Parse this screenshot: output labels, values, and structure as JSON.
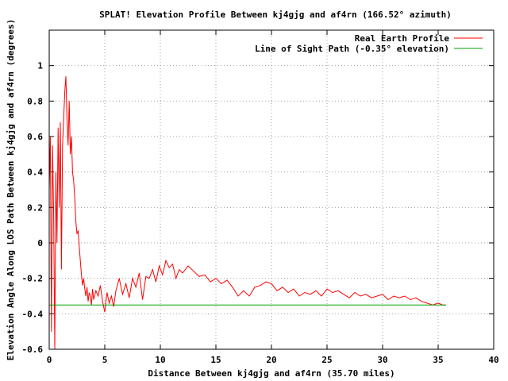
{
  "chart_data": {
    "type": "line",
    "title": "SPLAT! Elevation Profile Between kj4gjg and af4rn (166.52° azimuth)",
    "xlabel": "Distance Between kj4gjg and af4rn (35.70 miles)",
    "ylabel": "Elevation Angle Along LOS Path Between kj4gjg and af4rn (degrees)",
    "xlim": [
      0,
      40
    ],
    "ylim": [
      -0.6,
      1.2
    ],
    "x_ticks": [
      0,
      5,
      10,
      15,
      20,
      25,
      30,
      35,
      40
    ],
    "y_ticks": [
      -0.6,
      -0.4,
      -0.2,
      0,
      0.2,
      0.4,
      0.6,
      0.8,
      1
    ],
    "x_tick_labels": [
      "0",
      "5",
      "10",
      "15",
      "20",
      "25",
      "30",
      "35",
      "40"
    ],
    "y_tick_labels": [
      "-0.6",
      "-0.4",
      "-0.2",
      "0",
      "0.2",
      "0.4",
      "0.6",
      "0.8",
      "1"
    ],
    "grid": true,
    "legend_position": "top-right",
    "series": [
      {
        "name": "Real Earth Profile",
        "color": "#ff0000",
        "x": [
          0,
          0.1,
          0.2,
          0.3,
          0.4,
          0.5,
          0.6,
          0.7,
          0.8,
          0.9,
          1.0,
          1.1,
          1.2,
          1.3,
          1.4,
          1.5,
          1.6,
          1.7,
          1.8,
          1.9,
          2.0,
          2.1,
          2.2,
          2.3,
          2.4,
          2.5,
          2.6,
          2.7,
          2.8,
          2.9,
          3.0,
          3.1,
          3.2,
          3.3,
          3.4,
          3.5,
          3.6,
          3.7,
          3.8,
          3.9,
          4.0,
          4.2,
          4.4,
          4.6,
          4.8,
          5.0,
          5.2,
          5.4,
          5.6,
          5.8,
          6.0,
          6.3,
          6.6,
          6.9,
          7.2,
          7.5,
          7.8,
          8.1,
          8.4,
          8.7,
          9.0,
          9.3,
          9.6,
          9.9,
          10.2,
          10.5,
          10.8,
          11.1,
          11.4,
          11.7,
          12.0,
          12.5,
          13.0,
          13.5,
          14.0,
          14.5,
          15.0,
          15.5,
          16.0,
          16.5,
          17.0,
          17.5,
          18.0,
          18.5,
          19.0,
          19.5,
          20.0,
          20.5,
          21.0,
          21.5,
          22.0,
          22.5,
          23.0,
          23.5,
          24.0,
          24.5,
          25.0,
          25.5,
          26.0,
          26.5,
          27.0,
          27.5,
          28.0,
          28.5,
          29.0,
          29.5,
          30.0,
          30.5,
          31.0,
          31.5,
          32.0,
          32.5,
          33.0,
          33.5,
          34.0,
          34.5,
          35.0,
          35.4,
          35.7
        ],
        "values": [
          0.3,
          0.6,
          -0.5,
          0.55,
          0.15,
          -0.6,
          0.4,
          0.0,
          0.65,
          0.2,
          0.68,
          -0.15,
          0.55,
          0.7,
          0.85,
          0.94,
          0.7,
          0.55,
          0.8,
          0.5,
          0.6,
          0.4,
          0.35,
          0.25,
          0.12,
          0.05,
          0.07,
          -0.02,
          -0.1,
          -0.18,
          -0.24,
          -0.2,
          -0.26,
          -0.3,
          -0.25,
          -0.33,
          -0.28,
          -0.3,
          -0.35,
          -0.26,
          -0.32,
          -0.27,
          -0.3,
          -0.24,
          -0.33,
          -0.39,
          -0.28,
          -0.34,
          -0.3,
          -0.36,
          -0.27,
          -0.2,
          -0.29,
          -0.23,
          -0.31,
          -0.2,
          -0.25,
          -0.17,
          -0.32,
          -0.19,
          -0.2,
          -0.15,
          -0.22,
          -0.13,
          -0.18,
          -0.1,
          -0.14,
          -0.12,
          -0.2,
          -0.15,
          -0.17,
          -0.13,
          -0.16,
          -0.19,
          -0.18,
          -0.22,
          -0.2,
          -0.23,
          -0.21,
          -0.25,
          -0.3,
          -0.27,
          -0.3,
          -0.25,
          -0.24,
          -0.22,
          -0.23,
          -0.27,
          -0.25,
          -0.28,
          -0.26,
          -0.3,
          -0.28,
          -0.29,
          -0.27,
          -0.3,
          -0.26,
          -0.28,
          -0.27,
          -0.29,
          -0.31,
          -0.28,
          -0.3,
          -0.29,
          -0.31,
          -0.3,
          -0.29,
          -0.32,
          -0.3,
          -0.31,
          -0.3,
          -0.32,
          -0.31,
          -0.33,
          -0.34,
          -0.35,
          -0.34,
          -0.35,
          -0.35
        ]
      },
      {
        "name": "Line of Sight Path (-0.35° elevation)",
        "color": "#00a000",
        "x": [
          0,
          35.7
        ],
        "values": [
          -0.35,
          -0.35
        ]
      }
    ]
  }
}
